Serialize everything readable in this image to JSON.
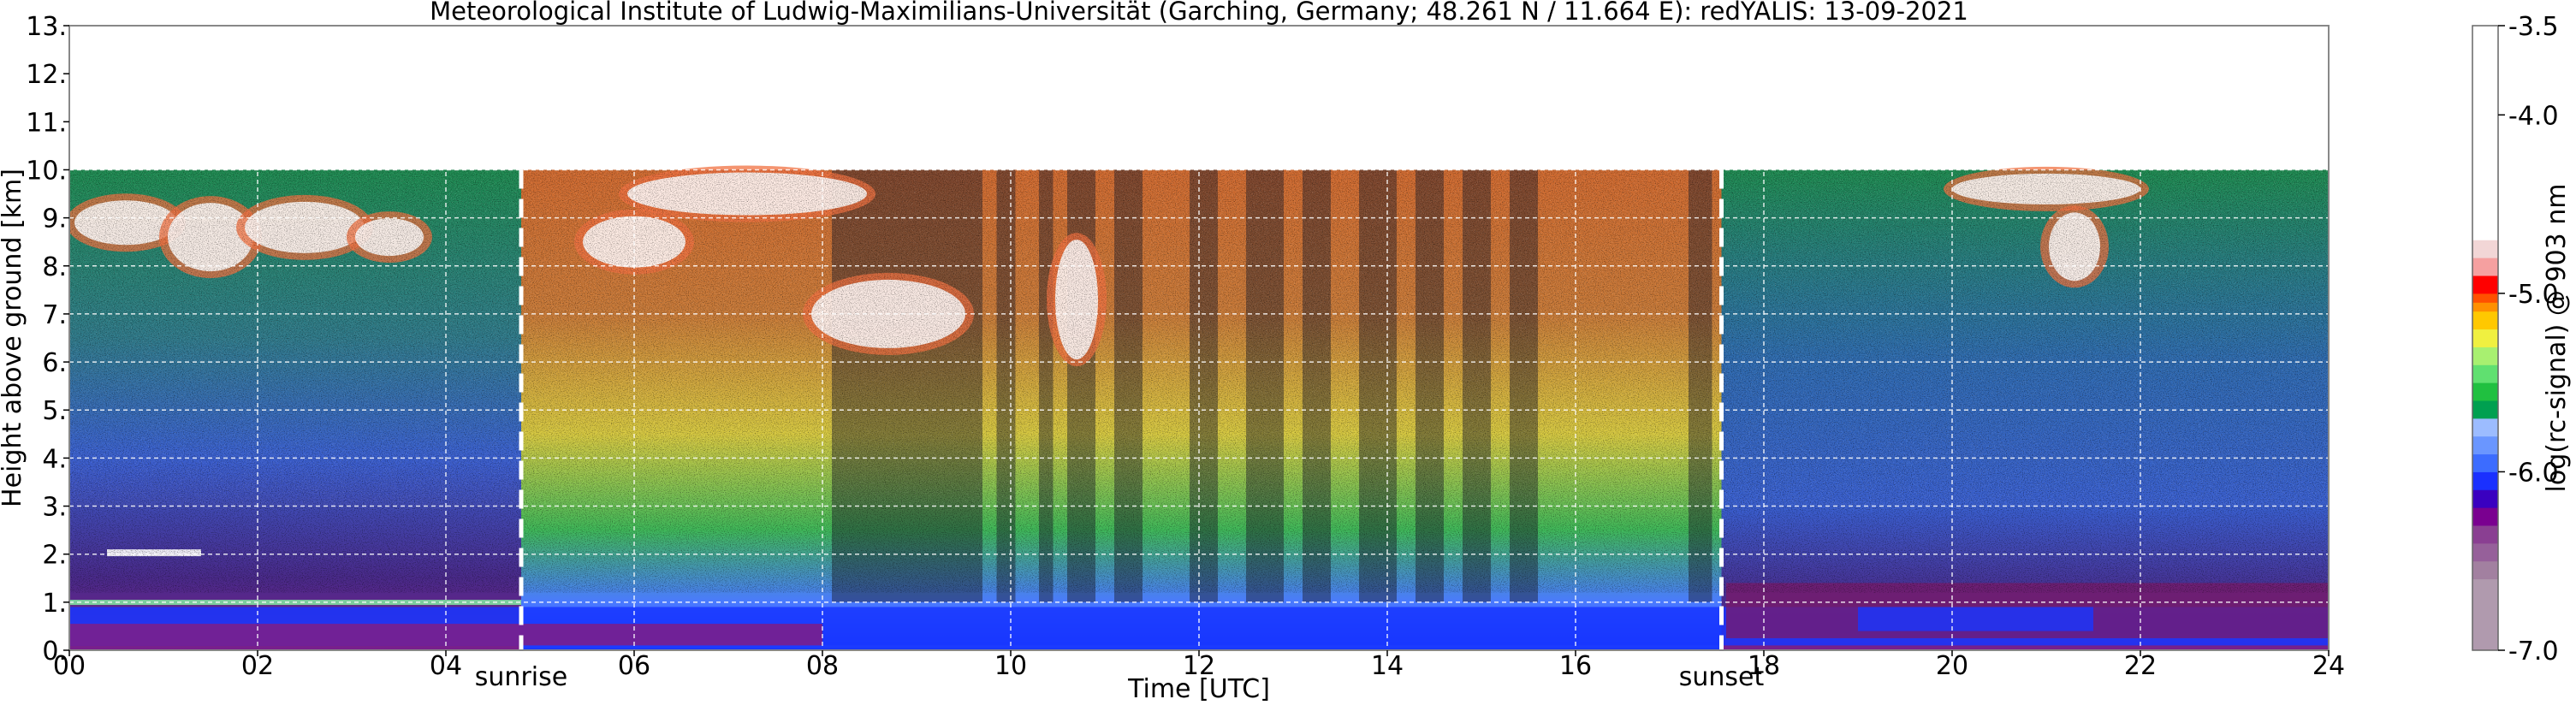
{
  "chart_data": {
    "type": "heatmap",
    "title": "Meteorological Institute of Ludwig-Maximilians-Universität (Garching, Germany; 48.261 N / 11.664 E):    redYALIS: 13-09-2021",
    "xlabel": "Time [UTC]",
    "ylabel": "Height above ground [km]",
    "xlim": [
      0,
      24
    ],
    "ylim": [
      0,
      13
    ],
    "x_ticks": [
      {
        "value": 0,
        "label": "00"
      },
      {
        "value": 2,
        "label": "02"
      },
      {
        "value": 4,
        "label": "04"
      },
      {
        "value": 6,
        "label": "06"
      },
      {
        "value": 8,
        "label": "08"
      },
      {
        "value": 10,
        "label": "10"
      },
      {
        "value": 12,
        "label": "12"
      },
      {
        "value": 14,
        "label": "14"
      },
      {
        "value": 16,
        "label": "16"
      },
      {
        "value": 18,
        "label": "18"
      },
      {
        "value": 20,
        "label": "20"
      },
      {
        "value": 22,
        "label": "22"
      },
      {
        "value": 24,
        "label": "24"
      }
    ],
    "y_ticks": [
      {
        "value": 0,
        "label": "0."
      },
      {
        "value": 1,
        "label": "1."
      },
      {
        "value": 2,
        "label": "2."
      },
      {
        "value": 3,
        "label": "3."
      },
      {
        "value": 4,
        "label": "4."
      },
      {
        "value": 5,
        "label": "5."
      },
      {
        "value": 6,
        "label": "6."
      },
      {
        "value": 7,
        "label": "7."
      },
      {
        "value": 8,
        "label": "8."
      },
      {
        "value": 9,
        "label": "9."
      },
      {
        "value": 10,
        "label": "10."
      },
      {
        "value": 11,
        "label": "11."
      },
      {
        "value": 12,
        "label": "12."
      },
      {
        "value": 13,
        "label": "13."
      }
    ],
    "grid": true,
    "data_top_km": 10,
    "annotations": [
      {
        "label": "sunrise",
        "x": 4.8
      },
      {
        "label": "sunset",
        "x": 17.55
      }
    ],
    "colorbar": {
      "label": "log(rc-signal) @ 903 nm",
      "range": [
        -7.0,
        -3.5
      ],
      "ticks": [
        {
          "value": -3.5,
          "label": "-3.5"
        },
        {
          "value": -4.0,
          "label": "-4.0"
        },
        {
          "value": -5.0,
          "label": "-5.0"
        },
        {
          "value": -6.0,
          "label": "-6.0"
        },
        {
          "value": -7.0,
          "label": "-7.0"
        }
      ],
      "levels": [
        {
          "from": -7.0,
          "to": -6.6,
          "color": "#b09aae"
        },
        {
          "from": -6.6,
          "to": -6.5,
          "color": "#a280a0"
        },
        {
          "from": -6.5,
          "to": -6.4,
          "color": "#96609a"
        },
        {
          "from": -6.4,
          "to": -6.3,
          "color": "#8a3f92"
        },
        {
          "from": -6.3,
          "to": -6.2,
          "color": "#7a0090"
        },
        {
          "from": -6.2,
          "to": -6.1,
          "color": "#3a00c0"
        },
        {
          "from": -6.1,
          "to": -6.0,
          "color": "#1a30ff"
        },
        {
          "from": -6.0,
          "to": -5.9,
          "color": "#3c6cff"
        },
        {
          "from": -5.9,
          "to": -5.8,
          "color": "#6a96ff"
        },
        {
          "from": -5.8,
          "to": -5.7,
          "color": "#9cbcff"
        },
        {
          "from": -5.7,
          "to": -5.6,
          "color": "#00a050"
        },
        {
          "from": -5.6,
          "to": -5.5,
          "color": "#20c040"
        },
        {
          "from": -5.5,
          "to": -5.4,
          "color": "#60e070"
        },
        {
          "from": -5.4,
          "to": -5.3,
          "color": "#a8f070"
        },
        {
          "from": -5.3,
          "to": -5.2,
          "color": "#f0f040"
        },
        {
          "from": -5.2,
          "to": -5.1,
          "color": "#ffc800"
        },
        {
          "from": -5.1,
          "to": -5.05,
          "color": "#ff9000"
        },
        {
          "from": -5.05,
          "to": -5.0,
          "color": "#ff5000"
        },
        {
          "from": -5.0,
          "to": -4.9,
          "color": "#ff0000"
        },
        {
          "from": -4.9,
          "to": -4.8,
          "color": "#f5a0a0"
        },
        {
          "from": -4.8,
          "to": -4.7,
          "color": "#f2d6d6"
        },
        {
          "from": -4.7,
          "to": -3.5,
          "color": "#ffffff"
        }
      ]
    },
    "colors": {
      "night_upper": "#1e8a50",
      "night_mid": "#3a5fd0",
      "night_low": "#4a2a8a",
      "day_upper": "#d06a30",
      "day_mid": "#d6c840",
      "day_low": "#40b85a",
      "bottom_purple": "#7a1f8c",
      "bottom_blue": "#1836ff",
      "cloud_white": "#ffffff",
      "cloud_edge": "#f07040"
    }
  }
}
